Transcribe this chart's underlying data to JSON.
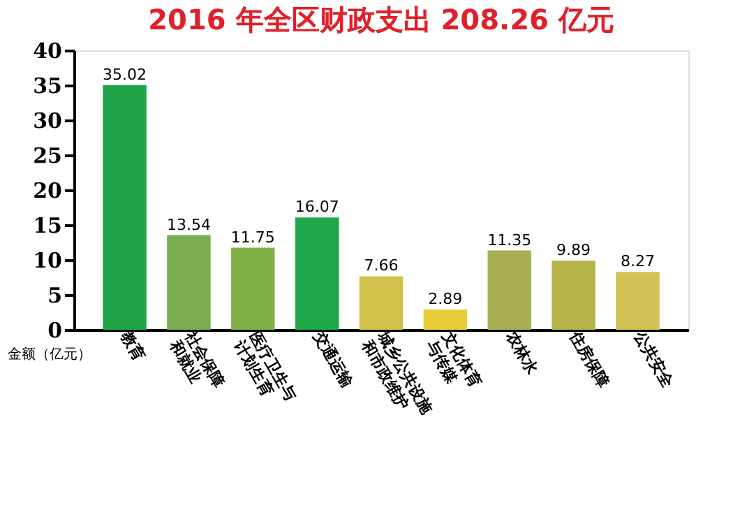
{
  "chart_data": {
    "type": "bar",
    "title": "2016 年全区财政支出 208.26 亿元",
    "ylabel": "金额（亿元）",
    "categories": [
      "教育",
      "社会保障和就业",
      "医疗卫生与计划生育",
      "交通运输",
      "城乡公共设施和市政维护",
      "文化体育与传媒",
      "农林水",
      "住房保障",
      "公共安全"
    ],
    "values": [
      35.02,
      13.54,
      11.75,
      16.07,
      7.66,
      2.89,
      11.35,
      9.89,
      8.27
    ],
    "colors": [
      "#1fa548",
      "#78ad50",
      "#80b046",
      "#1fa84a",
      "#d2c24c",
      "#e8cc38",
      "#a8ae52",
      "#b8b44c",
      "#d0c254"
    ],
    "ylim": [
      0,
      40
    ],
    "yticks": [
      0,
      5,
      10,
      15,
      20,
      25,
      30,
      35,
      40
    ],
    "grid": false,
    "data_labels": true
  }
}
